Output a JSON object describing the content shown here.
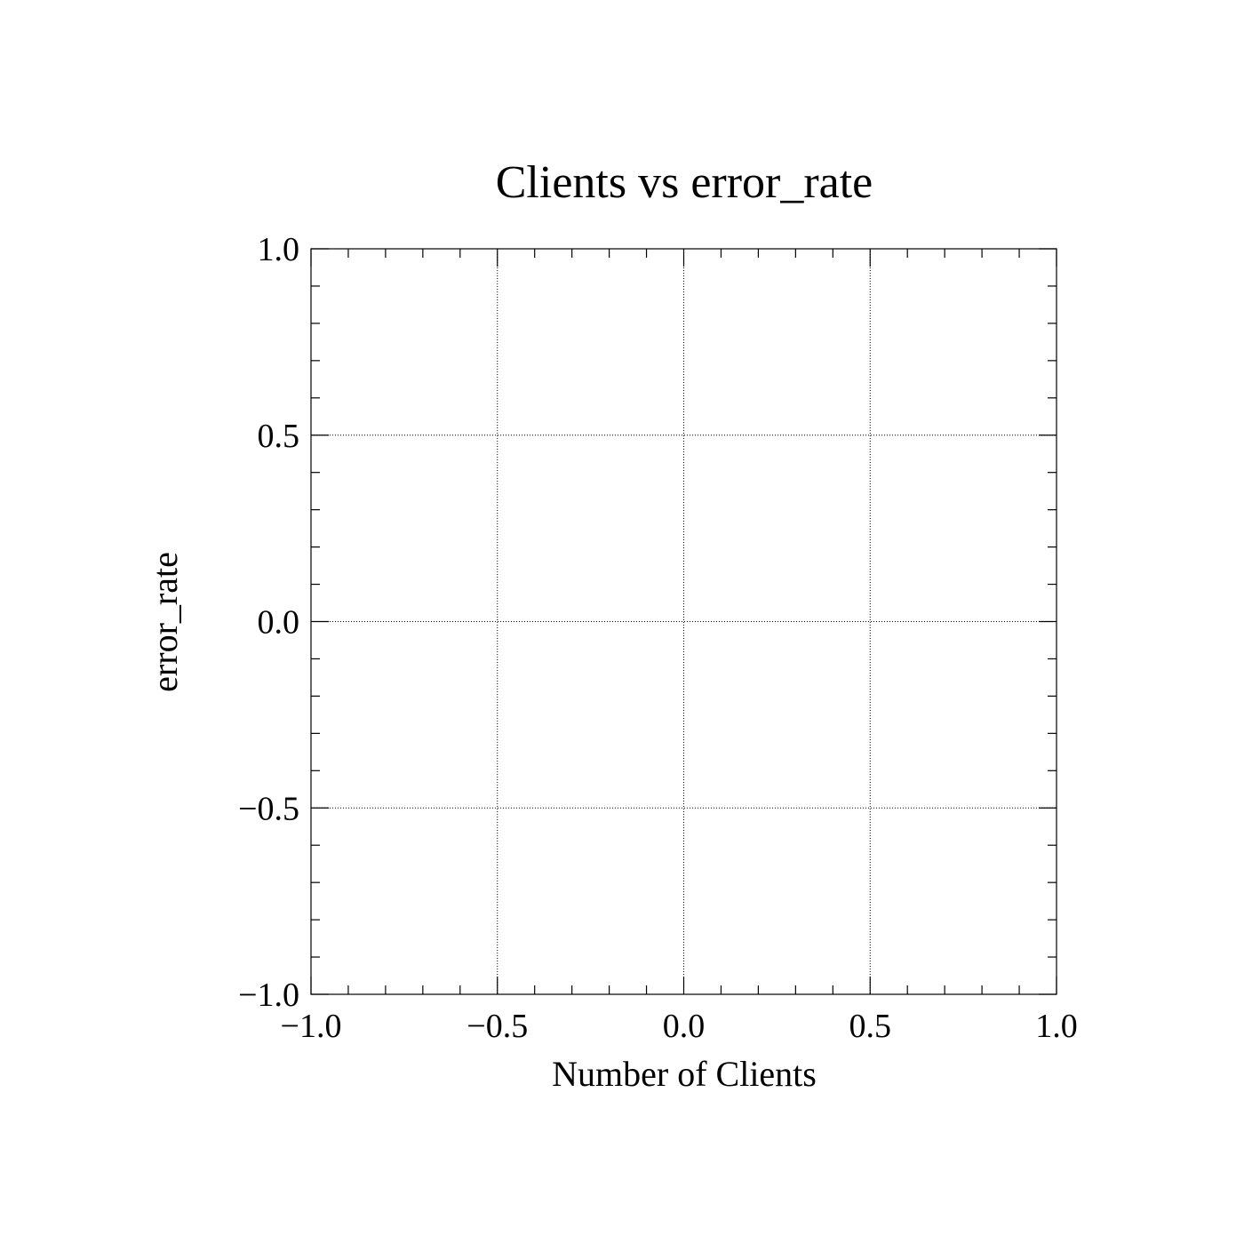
{
  "chart_data": {
    "type": "scatter",
    "title": "Clients vs error_rate",
    "xlabel": "Number of Clients",
    "ylabel": "error_rate",
    "xlim": [
      -1.0,
      1.0
    ],
    "ylim": [
      -1.0,
      1.0
    ],
    "xticks": [
      -1.0,
      -0.5,
      0.0,
      0.5,
      1.0
    ],
    "yticks": [
      -1.0,
      -0.5,
      0.0,
      0.5,
      1.0
    ],
    "xtick_labels": [
      "−1.0",
      "−0.5",
      "0.0",
      "0.5",
      "1.0"
    ],
    "ytick_labels": [
      "−1.0",
      "−0.5",
      "0.0",
      "0.5",
      "1.0"
    ],
    "minor_ticks_per_major": 5,
    "grid": true,
    "series": []
  }
}
